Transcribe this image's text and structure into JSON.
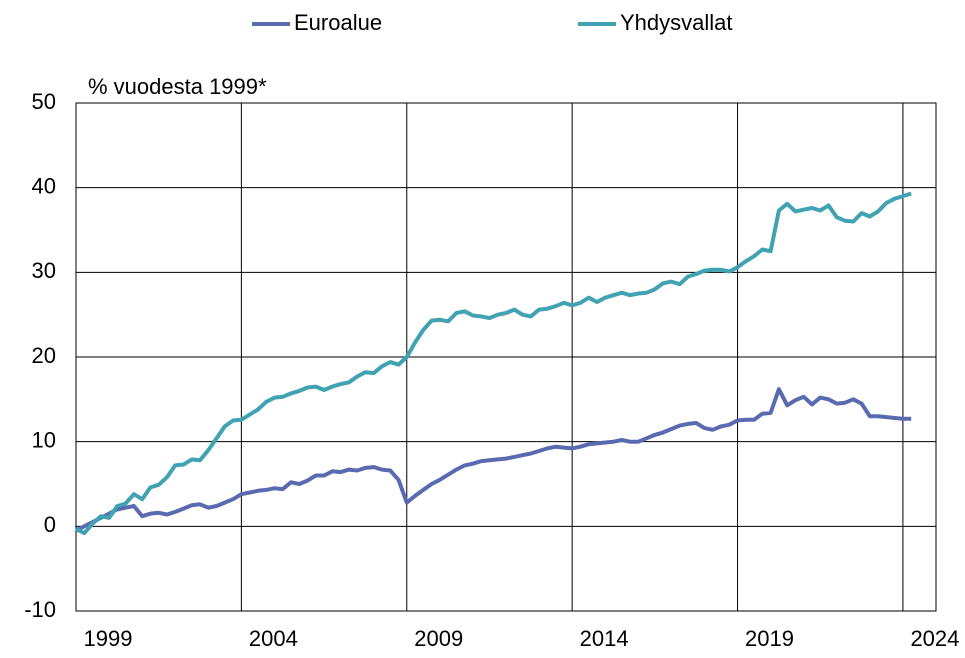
{
  "chart_data": {
    "type": "line",
    "y_label": "% vuodesta 1999*",
    "x": [
      1999,
      1999.25,
      1999.5,
      1999.75,
      2000,
      2000.25,
      2000.5,
      2000.75,
      2001,
      2001.25,
      2001.5,
      2001.75,
      2002,
      2002.25,
      2002.5,
      2002.75,
      2003,
      2003.25,
      2003.5,
      2003.75,
      2004,
      2004.25,
      2004.5,
      2004.75,
      2005,
      2005.25,
      2005.5,
      2005.75,
      2006,
      2006.25,
      2006.5,
      2006.75,
      2007,
      2007.25,
      2007.5,
      2007.75,
      2008,
      2008.25,
      2008.5,
      2008.75,
      2009,
      2009.25,
      2009.5,
      2009.75,
      2010,
      2010.25,
      2010.5,
      2010.75,
      2011,
      2011.25,
      2011.5,
      2011.75,
      2012,
      2012.25,
      2012.5,
      2012.75,
      2013,
      2013.25,
      2013.5,
      2013.75,
      2014,
      2014.25,
      2014.5,
      2014.75,
      2015,
      2015.25,
      2015.5,
      2015.75,
      2016,
      2016.25,
      2016.5,
      2016.75,
      2017,
      2017.25,
      2017.5,
      2017.75,
      2018,
      2018.25,
      2018.5,
      2018.75,
      2019,
      2019.25,
      2019.5,
      2019.75,
      2020,
      2020.25,
      2020.5,
      2020.75,
      2021,
      2021.25,
      2021.5,
      2021.75,
      2022,
      2022.25,
      2022.5,
      2022.75,
      2023,
      2023.25,
      2023.5,
      2023.75,
      2024,
      2024.25
    ],
    "series": [
      {
        "name": "Euroalue",
        "color": "#5a6ab0",
        "values": [
          -0.5,
          0,
          0.5,
          1.0,
          1.5,
          2.0,
          2.2,
          2.4,
          1.2,
          1.5,
          1.6,
          1.4,
          1.7,
          2.1,
          2.5,
          2.6,
          2.2,
          2.4,
          2.8,
          3.2,
          3.8,
          4.0,
          4.2,
          4.3,
          4.5,
          4.4,
          5.2,
          5.0,
          5.4,
          6.0,
          6.0,
          6.5,
          6.4,
          6.7,
          6.6,
          6.9,
          7.0,
          6.7,
          6.6,
          5.5,
          2.8,
          3.6,
          4.3,
          5.0,
          5.5,
          6.1,
          6.7,
          7.2,
          7.4,
          7.7,
          7.8,
          7.9,
          8.0,
          8.2,
          8.4,
          8.6,
          8.9,
          9.2,
          9.4,
          9.3,
          9.2,
          9.4,
          9.7,
          9.8,
          9.9,
          10.0,
          10.2,
          10.0,
          10.0,
          10.4,
          10.8,
          11.1,
          11.5,
          11.9,
          12.1,
          12.2,
          11.6,
          11.4,
          11.8,
          12.0,
          12.5,
          12.6,
          12.6,
          13.3,
          13.4,
          16.2,
          14.3,
          14.9,
          15.3,
          14.4,
          15.2,
          15.0,
          14.5,
          14.6,
          15.0,
          14.5,
          13.0,
          13.0,
          12.9,
          12.8,
          12.7,
          12.7
        ]
      },
      {
        "name": "Yhdysvallat",
        "color": "#41a2b2",
        "values": [
          -0.3,
          -0.8,
          0.3,
          1.2,
          1.0,
          2.4,
          2.7,
          3.8,
          3.2,
          4.6,
          4.9,
          5.8,
          7.2,
          7.3,
          7.9,
          7.8,
          9.0,
          10.4,
          11.8,
          12.5,
          12.6,
          13.2,
          13.8,
          14.7,
          15.2,
          15.3,
          15.7,
          16.0,
          16.4,
          16.5,
          16.1,
          16.5,
          16.8,
          17.0,
          17.7,
          18.2,
          18.1,
          18.9,
          19.4,
          19.1,
          20.0,
          21.7,
          23.2,
          24.3,
          24.4,
          24.2,
          25.2,
          25.4,
          24.9,
          24.8,
          24.6,
          25.0,
          25.2,
          25.6,
          25.0,
          24.8,
          25.6,
          25.7,
          26.0,
          26.4,
          26.1,
          26.4,
          27.0,
          26.5,
          27.0,
          27.3,
          27.6,
          27.3,
          27.5,
          27.6,
          28.0,
          28.7,
          28.9,
          28.6,
          29.5,
          29.8,
          30.2,
          30.3,
          30.3,
          30.1,
          30.6,
          31.3,
          31.9,
          32.7,
          32.5,
          37.3,
          38.1,
          37.2,
          37.4,
          37.6,
          37.3,
          37.9,
          36.5,
          36.1,
          36.0,
          37.0,
          36.6,
          37.2,
          38.2,
          38.7,
          39.0,
          39.3
        ]
      }
    ],
    "xlim": [
      1999,
      2025
    ],
    "xticks": [
      1999,
      2004,
      2009,
      2014,
      2019,
      2024
    ],
    "ylim": [
      -10,
      50
    ],
    "yticks": [
      -10,
      0,
      10,
      20,
      30,
      40,
      50
    ],
    "grid": true,
    "legend": "top"
  }
}
